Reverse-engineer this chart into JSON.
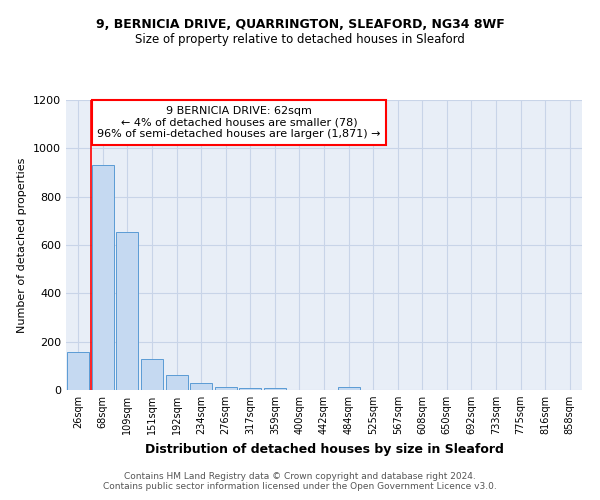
{
  "title1": "9, BERNICIA DRIVE, QUARRINGTON, SLEAFORD, NG34 8WF",
  "title2": "Size of property relative to detached houses in Sleaford",
  "xlabel": "Distribution of detached houses by size in Sleaford",
  "ylabel": "Number of detached properties",
  "footer1": "Contains HM Land Registry data © Crown copyright and database right 2024.",
  "footer2": "Contains public sector information licensed under the Open Government Licence v3.0.",
  "annotation_title": "9 BERNICIA DRIVE: 62sqm",
  "annotation_line2": "← 4% of detached houses are smaller (78)",
  "annotation_line3": "96% of semi-detached houses are larger (1,871) →",
  "bar_labels": [
    "26sqm",
    "68sqm",
    "109sqm",
    "151sqm",
    "192sqm",
    "234sqm",
    "276sqm",
    "317sqm",
    "359sqm",
    "400sqm",
    "442sqm",
    "484sqm",
    "525sqm",
    "567sqm",
    "608sqm",
    "650sqm",
    "692sqm",
    "733sqm",
    "775sqm",
    "816sqm",
    "858sqm"
  ],
  "bar_values": [
    157,
    930,
    655,
    130,
    62,
    30,
    12,
    8,
    7,
    0,
    0,
    12,
    0,
    0,
    0,
    0,
    0,
    0,
    0,
    0,
    0
  ],
  "bar_color": "#c5d9f1",
  "bar_edge_color": "#5b9bd5",
  "red_line_x": 0.5,
  "ylim": [
    0,
    1200
  ],
  "yticks": [
    0,
    200,
    400,
    600,
    800,
    1000,
    1200
  ],
  "bg_color": "#ffffff",
  "plot_bg_color": "#e8eef7",
  "grid_color": "#c8d4e8"
}
